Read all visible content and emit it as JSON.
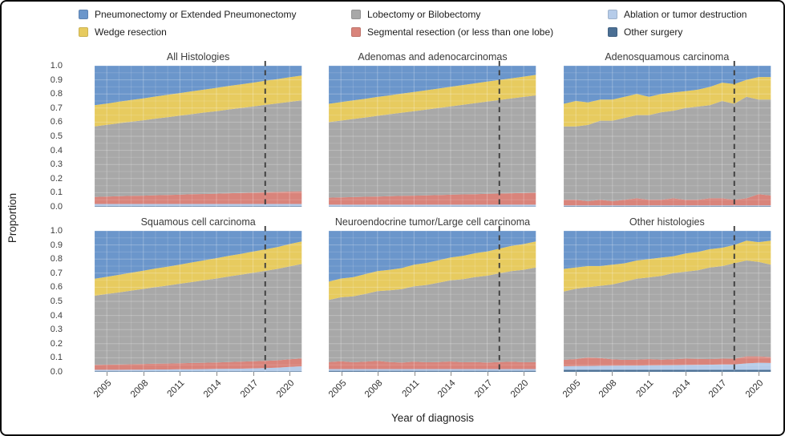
{
  "figure": {
    "xlabel": "Year of diagnosis",
    "ylabel": "Proportion"
  },
  "legend": {
    "items": [
      {
        "label": "Pneumonectomy or Extended Pneumonectomy",
        "color": "#6b96cb"
      },
      {
        "label": "Wedge resection",
        "color": "#e7cb5f"
      },
      {
        "label": "Lobectomy or Bilobectomy",
        "color": "#a8a8a8"
      },
      {
        "label": "Segmental resection (or less than one lobe)",
        "color": "#d9847b"
      },
      {
        "label": "Ablation or tumor destruction",
        "color": "#b6cce9"
      },
      {
        "label": "Other surgery",
        "color": "#4b6f94"
      }
    ]
  },
  "chart_data": {
    "type": "area",
    "stacked": true,
    "xlabel": "Year of diagnosis",
    "ylabel": "Proportion",
    "ylim": [
      0,
      1
    ],
    "y_ticks": [
      "1.0",
      "0.9",
      "0.8",
      "0.7",
      "0.6",
      "0.5",
      "0.4",
      "0.3",
      "0.2",
      "0.1",
      "0.0"
    ],
    "x": [
      2004,
      2005,
      2006,
      2007,
      2008,
      2009,
      2010,
      2011,
      2012,
      2013,
      2014,
      2015,
      2016,
      2017,
      2018,
      2019,
      2020,
      2021
    ],
    "x_tick_labels": [
      2005,
      2008,
      2011,
      2014,
      2017,
      2020
    ],
    "reference_line_x": 2018,
    "grid": true,
    "legend_position": "top",
    "stack_order_bottom_to_top": [
      "Other surgery",
      "Ablation or tumor destruction",
      "Segmental resection (or less than one lobe)",
      "Lobectomy or Bilobectomy",
      "Wedge resection",
      "Pneumonectomy or Extended Pneumonectomy"
    ],
    "panels": [
      {
        "title": "All Histologies",
        "series": {
          "Other surgery": [
            0.005,
            0.005,
            0.005,
            0.005,
            0.005,
            0.005,
            0.005,
            0.005,
            0.005,
            0.005,
            0.005,
            0.005,
            0.005,
            0.005,
            0.005,
            0.005,
            0.005,
            0.005
          ],
          "Ablation or tumor destruction": [
            0.015,
            0.015,
            0.015,
            0.015,
            0.015,
            0.015,
            0.015,
            0.015,
            0.015,
            0.015,
            0.015,
            0.015,
            0.015,
            0.015,
            0.015,
            0.015,
            0.015,
            0.015
          ],
          "Segmental resection (or less than one lobe)": [
            0.05,
            0.052,
            0.055,
            0.057,
            0.059,
            0.062,
            0.064,
            0.066,
            0.069,
            0.071,
            0.073,
            0.076,
            0.078,
            0.08,
            0.083,
            0.085,
            0.088,
            0.09
          ],
          "Lobectomy or Bilobectomy": [
            0.5,
            0.509,
            0.517,
            0.526,
            0.534,
            0.543,
            0.551,
            0.56,
            0.568,
            0.577,
            0.585,
            0.594,
            0.602,
            0.611,
            0.619,
            0.628,
            0.636,
            0.645
          ],
          "Wedge resection": [
            0.15,
            0.151,
            0.153,
            0.154,
            0.156,
            0.157,
            0.159,
            0.16,
            0.162,
            0.163,
            0.165,
            0.166,
            0.168,
            0.169,
            0.171,
            0.172,
            0.174,
            0.175
          ],
          "Pneumonectomy or Extended Pneumonectomy": [
            0.28,
            0.268,
            0.255,
            0.243,
            0.231,
            0.218,
            0.206,
            0.194,
            0.181,
            0.169,
            0.157,
            0.144,
            0.132,
            0.12,
            0.107,
            0.095,
            0.082,
            0.07
          ]
        }
      },
      {
        "title": "Adenomas and adenocarcinomas",
        "series": {
          "Other surgery": [
            0.003,
            0.003,
            0.003,
            0.003,
            0.003,
            0.003,
            0.003,
            0.003,
            0.003,
            0.003,
            0.003,
            0.003,
            0.003,
            0.003,
            0.003,
            0.003,
            0.003,
            0.003
          ],
          "Ablation or tumor destruction": [
            0.012,
            0.012,
            0.012,
            0.012,
            0.012,
            0.012,
            0.012,
            0.012,
            0.012,
            0.012,
            0.012,
            0.012,
            0.012,
            0.012,
            0.012,
            0.012,
            0.012,
            0.012
          ],
          "Segmental resection (or less than one lobe)": [
            0.05,
            0.052,
            0.054,
            0.056,
            0.058,
            0.06,
            0.062,
            0.064,
            0.066,
            0.068,
            0.071,
            0.073,
            0.075,
            0.077,
            0.079,
            0.081,
            0.083,
            0.085
          ],
          "Lobectomy or Bilobectomy": [
            0.535,
            0.544,
            0.553,
            0.562,
            0.572,
            0.581,
            0.59,
            0.599,
            0.608,
            0.617,
            0.626,
            0.635,
            0.644,
            0.654,
            0.663,
            0.672,
            0.681,
            0.69
          ],
          "Wedge resection": [
            0.13,
            0.131,
            0.132,
            0.133,
            0.134,
            0.134,
            0.135,
            0.136,
            0.137,
            0.138,
            0.139,
            0.14,
            0.141,
            0.142,
            0.142,
            0.143,
            0.144,
            0.145
          ],
          "Pneumonectomy or Extended Pneumonectomy": [
            0.27,
            0.258,
            0.246,
            0.234,
            0.221,
            0.21,
            0.198,
            0.186,
            0.174,
            0.162,
            0.149,
            0.137,
            0.125,
            0.112,
            0.101,
            0.089,
            0.077,
            0.065
          ]
        }
      },
      {
        "title": "Adenosquamous carcinoma",
        "series": {
          "Other surgery": [
            0.005,
            0.005,
            0.005,
            0.005,
            0.005,
            0.005,
            0.005,
            0.005,
            0.005,
            0.005,
            0.005,
            0.005,
            0.005,
            0.005,
            0.005,
            0.005,
            0.005,
            0.005
          ],
          "Ablation or tumor destruction": [
            0.005,
            0.005,
            0.005,
            0.005,
            0.005,
            0.005,
            0.005,
            0.005,
            0.005,
            0.005,
            0.005,
            0.005,
            0.005,
            0.005,
            0.005,
            0.005,
            0.005,
            0.005
          ],
          "Segmental resection (or less than one lobe)": [
            0.04,
            0.04,
            0.03,
            0.04,
            0.03,
            0.04,
            0.05,
            0.04,
            0.04,
            0.05,
            0.04,
            0.04,
            0.05,
            0.05,
            0.04,
            0.05,
            0.08,
            0.07
          ],
          "Lobectomy or Bilobectomy": [
            0.52,
            0.52,
            0.54,
            0.56,
            0.57,
            0.58,
            0.59,
            0.6,
            0.62,
            0.62,
            0.65,
            0.66,
            0.66,
            0.69,
            0.68,
            0.72,
            0.67,
            0.68
          ],
          "Wedge resection": [
            0.16,
            0.18,
            0.16,
            0.15,
            0.15,
            0.15,
            0.15,
            0.13,
            0.13,
            0.13,
            0.12,
            0.12,
            0.13,
            0.13,
            0.14,
            0.12,
            0.16,
            0.16
          ],
          "Pneumonectomy or Extended Pneumonectomy": [
            0.27,
            0.25,
            0.26,
            0.24,
            0.24,
            0.22,
            0.2,
            0.22,
            0.2,
            0.19,
            0.18,
            0.17,
            0.15,
            0.12,
            0.13,
            0.1,
            0.08,
            0.08
          ]
        }
      },
      {
        "title": "Squamous cell carcinoma",
        "series": {
          "Other surgery": [
            0.005,
            0.005,
            0.005,
            0.005,
            0.005,
            0.005,
            0.005,
            0.005,
            0.005,
            0.005,
            0.005,
            0.005,
            0.005,
            0.005,
            0.005,
            0.005,
            0.005,
            0.005
          ],
          "Ablation or tumor destruction": [
            0.01,
            0.01,
            0.01,
            0.011,
            0.011,
            0.012,
            0.012,
            0.013,
            0.014,
            0.015,
            0.016,
            0.017,
            0.018,
            0.02,
            0.022,
            0.025,
            0.03,
            0.035
          ],
          "Segmental resection (or less than one lobe)": [
            0.035,
            0.036,
            0.037,
            0.038,
            0.04,
            0.041,
            0.042,
            0.043,
            0.044,
            0.045,
            0.046,
            0.048,
            0.049,
            0.05,
            0.051,
            0.052,
            0.054,
            0.055
          ],
          "Lobectomy or Bilobectomy": [
            0.49,
            0.501,
            0.511,
            0.522,
            0.532,
            0.543,
            0.553,
            0.564,
            0.574,
            0.585,
            0.595,
            0.606,
            0.617,
            0.627,
            0.638,
            0.648,
            0.659,
            0.67
          ],
          "Wedge resection": [
            0.12,
            0.122,
            0.125,
            0.127,
            0.129,
            0.132,
            0.134,
            0.136,
            0.139,
            0.141,
            0.144,
            0.146,
            0.148,
            0.151,
            0.153,
            0.155,
            0.158,
            0.16
          ],
          "Pneumonectomy or Extended Pneumonectomy": [
            0.34,
            0.326,
            0.312,
            0.297,
            0.283,
            0.267,
            0.254,
            0.239,
            0.224,
            0.209,
            0.194,
            0.178,
            0.163,
            0.147,
            0.131,
            0.115,
            0.094,
            0.075
          ]
        }
      },
      {
        "title": "Neuroendocrine tumor/Large cell carcinoma",
        "series": {
          "Other surgery": [
            0.008,
            0.008,
            0.008,
            0.008,
            0.008,
            0.008,
            0.008,
            0.008,
            0.008,
            0.008,
            0.008,
            0.008,
            0.008,
            0.008,
            0.008,
            0.008,
            0.008,
            0.008
          ],
          "Ablation or tumor destruction": [
            0.012,
            0.012,
            0.012,
            0.012,
            0.012,
            0.012,
            0.012,
            0.012,
            0.012,
            0.012,
            0.012,
            0.012,
            0.012,
            0.012,
            0.012,
            0.012,
            0.012,
            0.012
          ],
          "Segmental resection (or less than one lobe)": [
            0.05,
            0.055,
            0.048,
            0.052,
            0.058,
            0.05,
            0.046,
            0.052,
            0.048,
            0.05,
            0.054,
            0.048,
            0.05,
            0.046,
            0.05,
            0.052,
            0.048,
            0.05
          ],
          "Lobectomy or Bilobectomy": [
            0.44,
            0.454,
            0.467,
            0.481,
            0.494,
            0.508,
            0.521,
            0.535,
            0.548,
            0.562,
            0.575,
            0.589,
            0.602,
            0.616,
            0.629,
            0.643,
            0.656,
            0.67
          ],
          "Wedge resection": [
            0.13,
            0.133,
            0.136,
            0.14,
            0.143,
            0.146,
            0.149,
            0.153,
            0.156,
            0.159,
            0.162,
            0.166,
            0.169,
            0.172,
            0.175,
            0.179,
            0.182,
            0.185
          ],
          "Pneumonectomy or Extended Pneumonectomy": [
            0.36,
            0.338,
            0.329,
            0.307,
            0.285,
            0.272,
            0.264,
            0.24,
            0.228,
            0.209,
            0.189,
            0.177,
            0.159,
            0.146,
            0.126,
            0.106,
            0.094,
            0.075
          ]
        }
      },
      {
        "title": "Other histologies",
        "series": {
          "Other surgery": [
            0.015,
            0.015,
            0.015,
            0.015,
            0.015,
            0.015,
            0.015,
            0.015,
            0.015,
            0.015,
            0.015,
            0.015,
            0.015,
            0.015,
            0.015,
            0.015,
            0.015,
            0.015
          ],
          "Ablation or tumor destruction": [
            0.025,
            0.026,
            0.027,
            0.028,
            0.029,
            0.03,
            0.03,
            0.031,
            0.032,
            0.033,
            0.034,
            0.035,
            0.036,
            0.037,
            0.038,
            0.045,
            0.05,
            0.048
          ],
          "Segmental resection (or less than one lobe)": [
            0.045,
            0.05,
            0.06,
            0.055,
            0.045,
            0.04,
            0.042,
            0.045,
            0.04,
            0.042,
            0.045,
            0.042,
            0.04,
            0.042,
            0.04,
            0.05,
            0.045,
            0.042
          ],
          "Lobectomy or Bilobectomy": [
            0.485,
            0.499,
            0.498,
            0.512,
            0.531,
            0.555,
            0.573,
            0.579,
            0.593,
            0.61,
            0.616,
            0.628,
            0.649,
            0.656,
            0.677,
            0.68,
            0.67,
            0.655
          ],
          "Wedge resection": [
            0.16,
            0.15,
            0.15,
            0.14,
            0.14,
            0.13,
            0.13,
            0.13,
            0.13,
            0.12,
            0.13,
            0.13,
            0.13,
            0.13,
            0.13,
            0.14,
            0.14,
            0.17
          ],
          "Pneumonectomy or Extended Pneumonectomy": [
            0.27,
            0.26,
            0.25,
            0.25,
            0.24,
            0.23,
            0.21,
            0.2,
            0.19,
            0.18,
            0.16,
            0.15,
            0.13,
            0.12,
            0.1,
            0.07,
            0.08,
            0.07
          ]
        }
      }
    ]
  }
}
